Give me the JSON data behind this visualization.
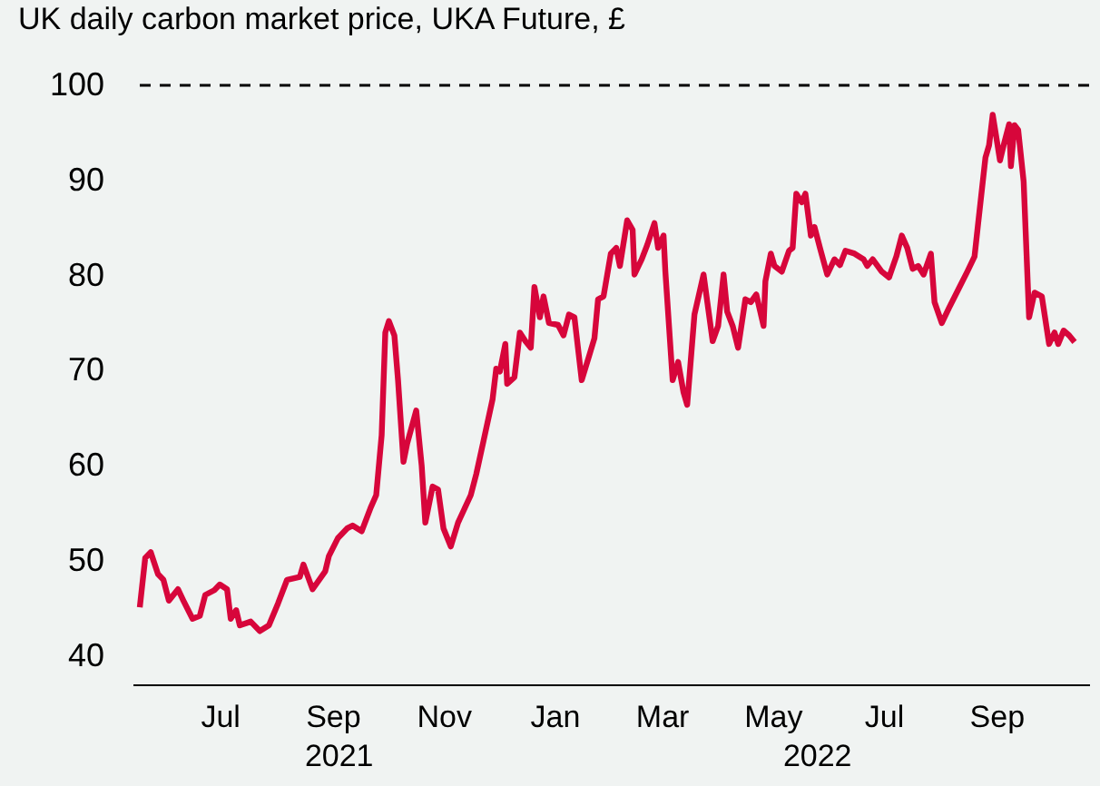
{
  "chart_data": {
    "type": "line",
    "title": "UK daily carbon market price, UKA Future, £",
    "x": [
      "2021-05-18",
      "2021-05-21",
      "2021-05-24",
      "2021-05-28",
      "2021-05-31",
      "2021-06-03",
      "2021-06-08",
      "2021-06-11",
      "2021-06-16",
      "2021-06-20",
      "2021-06-23",
      "2021-06-28",
      "2021-07-01",
      "2021-07-05",
      "2021-07-07",
      "2021-07-10",
      "2021-07-12",
      "2021-07-18",
      "2021-07-23",
      "2021-07-28",
      "2021-08-02",
      "2021-08-07",
      "2021-08-14",
      "2021-08-16",
      "2021-08-21",
      "2021-08-28",
      "2021-08-30",
      "2021-09-04",
      "2021-09-09",
      "2021-09-12",
      "2021-09-17",
      "2021-09-22",
      "2021-09-25",
      "2021-09-28",
      "2021-09-30",
      "2021-10-02",
      "2021-10-05",
      "2021-10-07",
      "2021-10-10",
      "2021-10-12",
      "2021-10-17",
      "2021-10-20",
      "2021-10-22",
      "2021-10-26",
      "2021-10-29",
      "2021-11-01",
      "2021-11-05",
      "2021-11-09",
      "2021-11-16",
      "2021-11-19",
      "2021-11-23",
      "2021-11-28",
      "2021-11-30",
      "2021-12-02",
      "2021-12-05",
      "2021-12-06",
      "2021-12-10",
      "2021-12-13",
      "2021-12-16",
      "2021-12-19",
      "2021-12-21",
      "2021-12-24",
      "2021-12-26",
      "2021-12-29",
      "2022-01-03",
      "2022-01-06",
      "2022-01-09",
      "2022-01-12",
      "2022-01-16",
      "2022-01-20",
      "2022-01-23",
      "2022-01-25",
      "2022-01-28",
      "2022-02-01",
      "2022-02-04",
      "2022-02-06",
      "2022-02-10",
      "2022-02-13",
      "2022-02-14",
      "2022-02-18",
      "2022-02-21",
      "2022-02-25",
      "2022-02-27",
      "2022-03-02",
      "2022-03-03",
      "2022-03-07",
      "2022-03-10",
      "2022-03-13",
      "2022-03-15",
      "2022-03-19",
      "2022-03-24",
      "2022-03-29",
      "2022-04-01",
      "2022-04-04",
      "2022-04-06",
      "2022-04-09",
      "2022-04-12",
      "2022-04-16",
      "2022-04-19",
      "2022-04-22",
      "2022-04-26",
      "2022-04-27",
      "2022-04-30",
      "2022-05-02",
      "2022-05-06",
      "2022-05-10",
      "2022-05-12",
      "2022-05-14",
      "2022-05-17",
      "2022-05-19",
      "2022-05-22",
      "2022-05-24",
      "2022-05-27",
      "2022-05-31",
      "2022-06-04",
      "2022-06-07",
      "2022-06-10",
      "2022-06-15",
      "2022-06-20",
      "2022-06-22",
      "2022-06-25",
      "2022-06-30",
      "2022-07-04",
      "2022-07-08",
      "2022-07-11",
      "2022-07-14",
      "2022-07-17",
      "2022-07-20",
      "2022-07-23",
      "2022-07-27",
      "2022-07-29",
      "2022-08-02",
      "2022-08-06",
      "2022-08-11",
      "2022-08-16",
      "2022-08-20",
      "2022-08-22",
      "2022-08-26",
      "2022-08-28",
      "2022-08-30",
      "2022-09-03",
      "2022-09-05",
      "2022-09-08",
      "2022-09-09",
      "2022-09-11",
      "2022-09-13",
      "2022-09-16",
      "2022-09-19",
      "2022-09-22",
      "2022-09-26",
      "2022-09-30",
      "2022-10-03",
      "2022-10-05",
      "2022-10-08",
      "2022-10-11",
      "2022-10-14"
    ],
    "series": [
      {
        "color": "#d7063b",
        "values": [
          45.1,
          50.3,
          50.9,
          48.6,
          48.0,
          45.8,
          47.0,
          45.8,
          43.9,
          44.2,
          46.4,
          46.9,
          47.5,
          47.0,
          43.9,
          44.8,
          43.2,
          43.6,
          42.6,
          43.2,
          45.5,
          48.0,
          48.3,
          49.6,
          47.0,
          48.9,
          50.5,
          52.4,
          53.4,
          53.7,
          53.1,
          55.6,
          56.9,
          63.2,
          74.0,
          75.2,
          73.7,
          69.0,
          60.4,
          62.3,
          65.8,
          60.0,
          54.0,
          57.8,
          57.5,
          53.4,
          51.5,
          54.0,
          56.9,
          59.1,
          62.6,
          67.0,
          70.2,
          69.9,
          72.8,
          68.6,
          69.3,
          74.0,
          73.1,
          72.4,
          78.8,
          75.6,
          77.8,
          75.0,
          74.8,
          73.7,
          75.9,
          75.6,
          69.0,
          71.5,
          73.4,
          77.5,
          77.8,
          82.3,
          82.9,
          81.0,
          85.8,
          84.8,
          80.1,
          81.7,
          83.2,
          85.5,
          82.9,
          84.2,
          80.4,
          69.0,
          70.9,
          67.7,
          66.4,
          75.9,
          80.1,
          73.1,
          74.7,
          80.1,
          76.2,
          74.7,
          72.4,
          77.5,
          77.2,
          78.0,
          74.7,
          79.4,
          82.3,
          81.0,
          80.4,
          82.6,
          82.9,
          88.6,
          87.7,
          88.6,
          84.2,
          85.1,
          82.9,
          80.1,
          81.7,
          81.1,
          82.6,
          82.3,
          81.7,
          81.0,
          81.7,
          80.4,
          79.8,
          82.0,
          84.2,
          82.9,
          80.7,
          81.0,
          80.1,
          82.3,
          77.2,
          75.0,
          76.6,
          78.5,
          80.4,
          82.0,
          85.5,
          92.4,
          93.7,
          96.9,
          92.1,
          93.7,
          95.9,
          91.5,
          95.8,
          95.3,
          89.9,
          75.6,
          78.2,
          77.8,
          72.8,
          74.0,
          72.8,
          74.2,
          73.7,
          73.0
        ]
      }
    ],
    "xlim": [
      "2021-05-14",
      "2022-10-22"
    ],
    "xticks": [
      {
        "value": "2021-07-01",
        "label": "Jul"
      },
      {
        "value": "2021-09-01",
        "label": "Sep"
      },
      {
        "value": "2021-11-01",
        "label": "Nov"
      },
      {
        "value": "2022-01-01",
        "label": "Jan"
      },
      {
        "value": "2022-03-01",
        "label": "Mar"
      },
      {
        "value": "2022-05-01",
        "label": "May"
      },
      {
        "value": "2022-07-01",
        "label": "Jul"
      },
      {
        "value": "2022-09-01",
        "label": "Sep"
      }
    ],
    "ylim": [
      37,
      100
    ],
    "yticks": [
      40,
      50,
      60,
      70,
      80,
      90,
      100
    ],
    "ref_lines": [
      {
        "axis": "y",
        "value": 100,
        "color": "#000000",
        "line_style": "dashed"
      }
    ],
    "annotations": [
      "2021",
      "2022"
    ],
    "grid": false,
    "line_style": "solid",
    "marker": "none"
  }
}
